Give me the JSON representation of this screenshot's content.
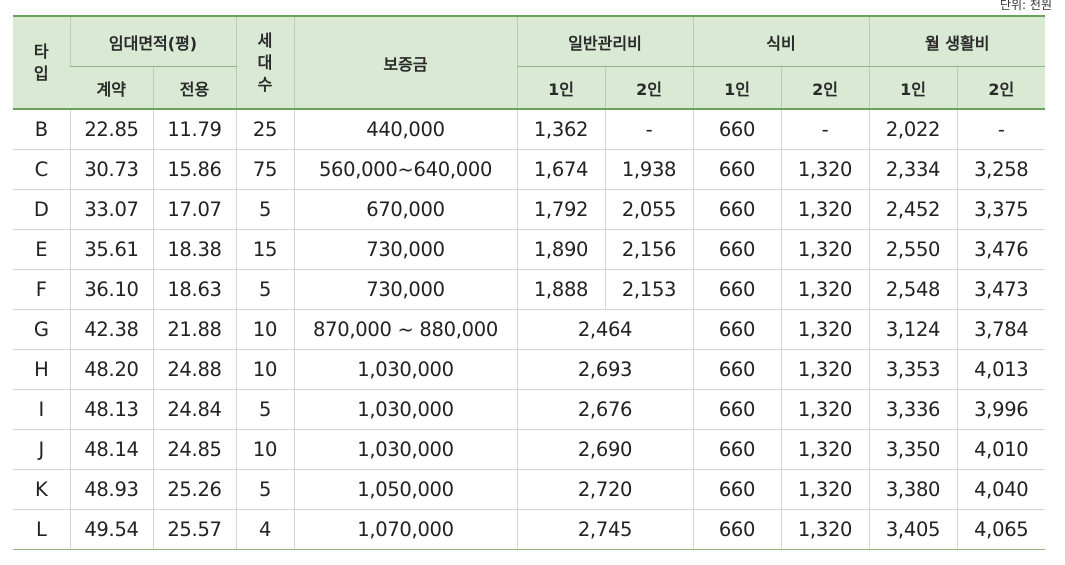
{
  "unit_label": "단위: 천원",
  "header": {
    "type": "타입",
    "type_line1": "타",
    "type_line2": "입",
    "area": "임대면적(평)",
    "area_contract": "계약",
    "area_exclusive": "전용",
    "households_line1": "세",
    "households_line2": "대",
    "households_line3": "수",
    "deposit": "보증금",
    "mgmt": "일반관리비",
    "mgmt_1": "1인",
    "mgmt_2": "2인",
    "meal": "식비",
    "meal_1": "1인",
    "meal_2": "2인",
    "living": "월 생활비",
    "living_1": "1인",
    "living_2": "2인"
  },
  "rows": [
    {
      "type": "B",
      "contract": "22.85",
      "exclusive": "11.79",
      "households": "25",
      "deposit": "440,000",
      "mgmt1": "1,362",
      "mgmt2": "-",
      "meal1": "660",
      "meal2": "-",
      "living1": "2,022",
      "living2": "-"
    },
    {
      "type": "C",
      "contract": "30.73",
      "exclusive": "15.86",
      "households": "75",
      "deposit": "560,000~640,000",
      "mgmt1": "1,674",
      "mgmt2": "1,938",
      "meal1": "660",
      "meal2": "1,320",
      "living1": "2,334",
      "living2": "3,258"
    },
    {
      "type": "D",
      "contract": "33.07",
      "exclusive": "17.07",
      "households": "5",
      "deposit": "670,000",
      "mgmt1": "1,792",
      "mgmt2": "2,055",
      "meal1": "660",
      "meal2": "1,320",
      "living1": "2,452",
      "living2": "3,375"
    },
    {
      "type": "E",
      "contract": "35.61",
      "exclusive": "18.38",
      "households": "15",
      "deposit": "730,000",
      "mgmt1": "1,890",
      "mgmt2": "2,156",
      "meal1": "660",
      "meal2": "1,320",
      "living1": "2,550",
      "living2": "3,476"
    },
    {
      "type": "F",
      "contract": "36.10",
      "exclusive": "18.63",
      "households": "5",
      "deposit": "730,000",
      "mgmt1": "1,888",
      "mgmt2": "2,153",
      "meal1": "660",
      "meal2": "1,320",
      "living1": "2,548",
      "living2": "3,473"
    },
    {
      "type": "G",
      "contract": "42.38",
      "exclusive": "21.88",
      "households": "10",
      "deposit": "870,000 ~ 880,000",
      "mgmt": "2,464",
      "meal1": "660",
      "meal2": "1,320",
      "living1": "3,124",
      "living2": "3,784"
    },
    {
      "type": "H",
      "contract": "48.20",
      "exclusive": "24.88",
      "households": "10",
      "deposit": "1,030,000",
      "mgmt": "2,693",
      "meal1": "660",
      "meal2": "1,320",
      "living1": "3,353",
      "living2": "4,013"
    },
    {
      "type": "I",
      "contract": "48.13",
      "exclusive": "24.84",
      "households": "5",
      "deposit": "1,030,000",
      "mgmt": "2,676",
      "meal1": "660",
      "meal2": "1,320",
      "living1": "3,336",
      "living2": "3,996"
    },
    {
      "type": "J",
      "contract": "48.14",
      "exclusive": "24.85",
      "households": "10",
      "deposit": "1,030,000",
      "mgmt": "2,690",
      "meal1": "660",
      "meal2": "1,320",
      "living1": "3,350",
      "living2": "4,010"
    },
    {
      "type": "K",
      "contract": "48.93",
      "exclusive": "25.26",
      "households": "5",
      "deposit": "1,050,000",
      "mgmt": "2,720",
      "meal1": "660",
      "meal2": "1,320",
      "living1": "3,380",
      "living2": "4,040"
    },
    {
      "type": "L",
      "contract": "49.54",
      "exclusive": "25.57",
      "households": "4",
      "deposit": "1,070,000",
      "mgmt": "2,745",
      "meal1": "660",
      "meal2": "1,320",
      "living1": "3,405",
      "living2": "4,065"
    }
  ]
}
